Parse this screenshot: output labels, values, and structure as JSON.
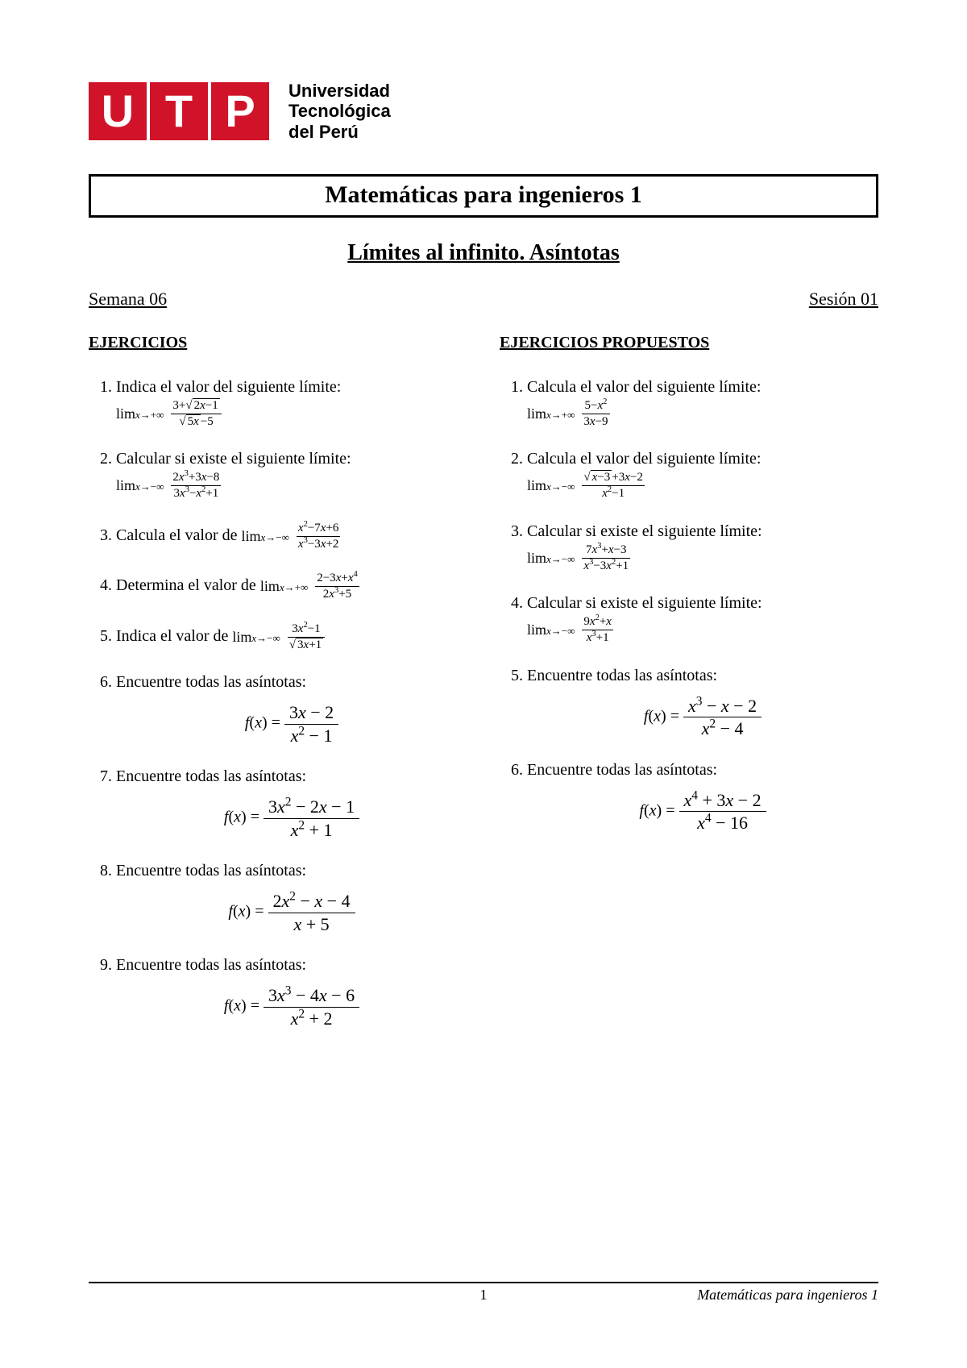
{
  "logo": {
    "l1": "U",
    "l2": "T",
    "l3": "P",
    "text1": "Universidad",
    "text2": "Tecnológica",
    "text3": "del Perú"
  },
  "title": "Matemáticas para ingenieros 1",
  "subtitle": "Límites al infinito. Asíntotas",
  "semana": "Semana 06",
  "sesion": "Sesión 01",
  "left": {
    "heading": "EJERCICIOS",
    "items": [
      {
        "text": "Indica el valor del siguiente límite:",
        "lim_to": "x→+∞",
        "num": "3+√(2x−1)",
        "den": "√(5x)−5",
        "num_html": "3+<span class='sqrt'><span class='rad'>2<span class='fx'>x</span>−1</span></span>",
        "den_html": "<span class='sqrt'><span class='rad'>5<span class='fx'>x</span></span></span>−5"
      },
      {
        "text": "Calcular si existe el siguiente límite:",
        "lim_to": "x→−∞",
        "num": "2x³+3x−8",
        "den": "3x³−x²+1",
        "num_html": "2<span class='fx'>x</span><sup>3</sup>+3<span class='fx'>x</span>−8",
        "den_html": "3<span class='fx'>x</span><sup>3</sup>−<span class='fx'>x</span><sup>2</sup>+1"
      },
      {
        "text_pre": "Calcula el valor de ",
        "inline": true,
        "lim_to": "x→−∞",
        "num": "x²−7x+6",
        "den": "x³−3x+2",
        "num_html": "<span class='fx'>x</span><sup>2</sup>−7<span class='fx'>x</span>+6",
        "den_html": "<span class='fx'>x</span><sup>3</sup>−3<span class='fx'>x</span>+2"
      },
      {
        "text_pre": "Determina el valor de ",
        "inline": true,
        "lim_to": "x→+∞",
        "num": "2−3x+x⁴",
        "den": "2x³+5",
        "num_html": "2−3<span class='fx'>x</span>+<span class='fx'>x</span><sup>4</sup>",
        "den_html": "2<span class='fx'>x</span><sup>3</sup>+5"
      },
      {
        "text_pre": "Indica el valor de ",
        "inline": true,
        "lim_to": "x→−∞",
        "num": "3x²−1",
        "den": "√(3x+1)",
        "num_html": "3<span class='fx'>x</span><sup>2</sup>−1",
        "den_html": "<span class='sqrt'><span class='rad'>3<span class='fx'>x</span>+1</span></span>"
      },
      {
        "text": "Encuentre todas las asíntotas:",
        "fx": true,
        "num": "3x − 2",
        "den": "x² − 1",
        "num_html": "3<span class='fx'>x</span> − 2",
        "den_html": "<span class='fx'>x</span><sup>2</sup> − 1"
      },
      {
        "text": "Encuentre todas las asíntotas:",
        "fx": true,
        "num": "3x² − 2x − 1",
        "den": "x² + 1",
        "num_html": "3<span class='fx'>x</span><sup>2</sup> − 2<span class='fx'>x</span> − 1",
        "den_html": "<span class='fx'>x</span><sup>2</sup> + 1"
      },
      {
        "text": "Encuentre todas las asíntotas:",
        "fx": true,
        "num": "2x² − x − 4",
        "den": "x + 5",
        "num_html": "2<span class='fx'>x</span><sup>2</sup> − <span class='fx'>x</span> − 4",
        "den_html": "<span class='fx'>x</span> + 5"
      },
      {
        "text": "Encuentre todas las asíntotas:",
        "fx": true,
        "num": "3x³ − 4x − 6",
        "den": "x² + 2",
        "num_html": "3<span class='fx'>x</span><sup>3</sup> − 4<span class='fx'>x</span> − 6",
        "den_html": "<span class='fx'>x</span><sup>2</sup> + 2"
      }
    ]
  },
  "right": {
    "heading": "EJERCICIOS PROPUESTOS",
    "items": [
      {
        "text": "Calcula el valor del siguiente límite:",
        "lim_to": "x→+∞",
        "num": "5−x²",
        "den": "3x−9",
        "num_html": "5−<span class='fx'>x</span><sup>2</sup>",
        "den_html": "3<span class='fx'>x</span>−9"
      },
      {
        "text": "Calcula el valor del siguiente límite:",
        "lim_to": "x→−∞",
        "num": "√(x−3)+3x−2",
        "den": "x²−1",
        "num_html": "<span class='sqrt'><span class='rad'><span class='fx'>x</span>−3</span></span>+3<span class='fx'>x</span>−2",
        "den_html": "<span class='fx'>x</span><sup>2</sup>−1"
      },
      {
        "text": "Calcular si existe el siguiente límite:",
        "lim_to": "x→−∞",
        "num": "7x³+x−3",
        "den": "x³−3x²+1",
        "num_html": "7<span class='fx'>x</span><sup>3</sup>+<span class='fx'>x</span>−3",
        "den_html": "<span class='fx'>x</span><sup>3</sup>−3<span class='fx'>x</span><sup>2</sup>+1"
      },
      {
        "text": "Calcular si existe el siguiente límite:",
        "lim_to": "x→−∞",
        "num": "9x²+x",
        "den": "x³+1",
        "num_html": "9<span class='fx'>x</span><sup>2</sup>+<span class='fx'>x</span>",
        "den_html": "<span class='fx'>x</span><sup>3</sup>+1"
      },
      {
        "text": "Encuentre todas las asíntotas:",
        "fx": true,
        "num": "x³ − x − 2",
        "den": "x² − 4",
        "num_html": "<span class='fx'>x</span><sup>3</sup> − <span class='fx'>x</span> − 2",
        "den_html": "<span class='fx'>x</span><sup>2</sup> − 4"
      },
      {
        "text": "Encuentre todas las asíntotas:",
        "fx": true,
        "num": "x⁴ + 3x − 2",
        "den": "x⁴ − 16",
        "num_html": "<span class='fx'>x</span><sup>4</sup> + 3<span class='fx'>x</span> − 2",
        "den_html": "<span class='fx'>x</span><sup>4</sup> − 16"
      }
    ]
  },
  "footer": {
    "page": "1",
    "course": "Matemáticas para ingenieros 1"
  },
  "colors": {
    "brand": "#d11329",
    "text": "#000000",
    "bg": "#ffffff"
  }
}
